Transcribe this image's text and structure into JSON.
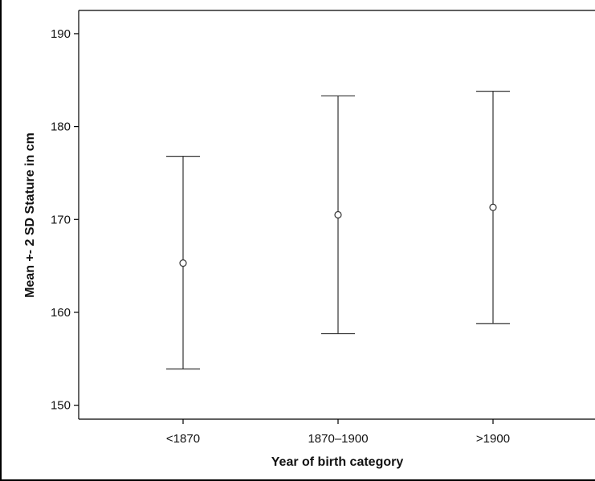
{
  "chart_data": {
    "type": "errorbar",
    "xlabel": "Year of birth category",
    "ylabel": "Mean +- 2 SD Stature in cm",
    "ylim": [
      148.5,
      192.5
    ],
    "yticks": [
      150,
      160,
      170,
      180,
      190
    ],
    "grid": false,
    "categories": [
      "<1870",
      "1870–1900",
      ">1900"
    ],
    "mean": [
      165.3,
      170.5,
      171.3
    ],
    "lower": [
      153.9,
      157.7,
      158.8
    ],
    "upper": [
      176.8,
      183.3,
      183.8
    ]
  }
}
